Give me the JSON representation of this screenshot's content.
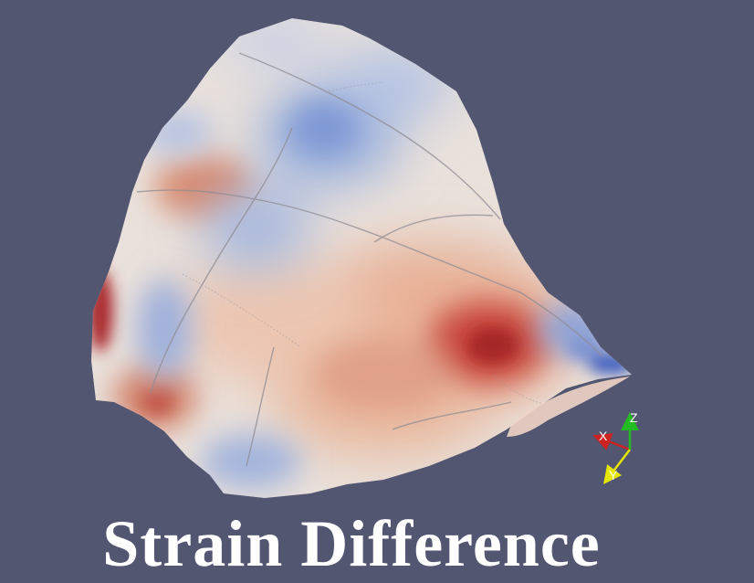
{
  "caption": "Strain Difference",
  "colors": {
    "background": "#525671",
    "high": "#b2182b",
    "mid": "#ece4dd",
    "low": "#3b63c8",
    "axis_x": "#cc2222",
    "axis_y": "#e6e600",
    "axis_z": "#22bb22"
  },
  "orientation_axes": {
    "x_label": "X",
    "y_label": "Y",
    "z_label": "Z"
  }
}
